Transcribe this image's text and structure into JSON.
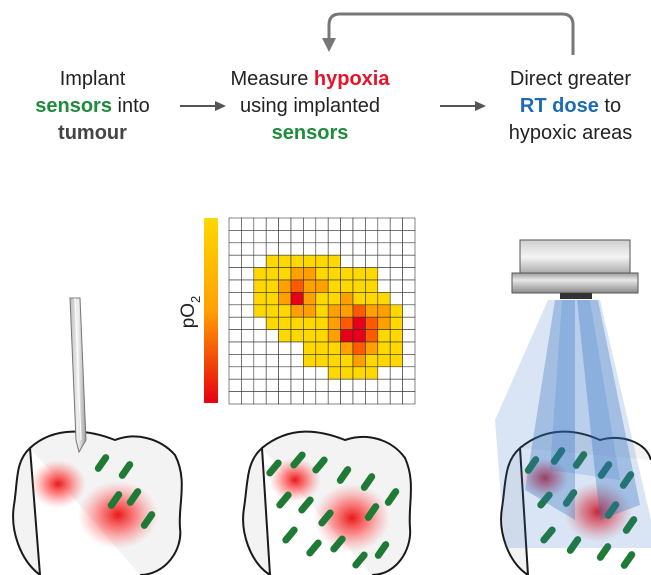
{
  "steps": [
    {
      "lines": [
        [
          {
            "text": "Implant",
            "style": "plain"
          }
        ],
        [
          {
            "text": "sensors",
            "style": "green"
          },
          {
            "text": " into",
            "style": "plain"
          }
        ],
        [
          {
            "text": "tumour",
            "style": "dark"
          }
        ]
      ]
    },
    {
      "lines": [
        [
          {
            "text": "Measure ",
            "style": "plain"
          },
          {
            "text": "hypoxia",
            "style": "red"
          }
        ],
        [
          {
            "text": "using implanted",
            "style": "plain"
          }
        ],
        [
          {
            "text": "sensors",
            "style": "green"
          }
        ]
      ]
    },
    {
      "lines": [
        [
          {
            "text": "Direct greater",
            "style": "plain"
          }
        ],
        [
          {
            "text": "RT dose",
            "style": "blue"
          },
          {
            "text": " to",
            "style": "plain"
          }
        ],
        [
          {
            "text": "hypoxic areas",
            "style": "plain"
          }
        ]
      ]
    }
  ],
  "colorbar_label": "pO",
  "colorbar_label_sub": "2",
  "heatmap": {
    "rows": [
      "...............",
      "...............",
      "...............",
      "...yyyyyy......",
      "..yyyooyyyyy...",
      "..yyorooyyyy...",
      "..yyoRoyyoyyy..",
      "..yyyooyoorooy.",
      "...yyyyyorRroy.",
      "....yyyyoRRryy.",
      "......yyyoroyy.",
      "......yyyyoyyy.",
      "........yyyy...",
      "...............",
      "..............."
    ],
    "colors": {
      "y": "#ffd800",
      "o": "#ffa000",
      "r": "#ff5a00",
      "R": "#e8001a"
    }
  },
  "colors": {
    "green": "#1e8c3a",
    "red": "#e8132b",
    "blue": "#1c6bb5",
    "dark": "#444444",
    "plain": "#222222",
    "arrow": "#555555",
    "sensor": "#1e7a34",
    "tumour_fill": "#f3f3f3",
    "hotspot": "#e60000",
    "beam": "#2e6fc2"
  }
}
